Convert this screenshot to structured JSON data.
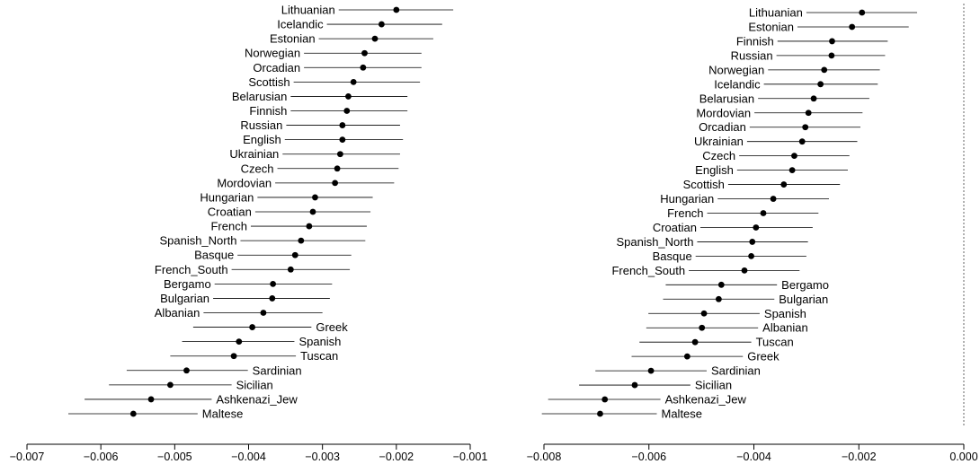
{
  "chart_data": [
    {
      "type": "scatter",
      "style": "forest-plot",
      "title": "",
      "xlabel": "",
      "ylabel": "",
      "xlim": [
        -0.007,
        -0.001
      ],
      "xticks": [
        -0.007,
        -0.006,
        -0.005,
        -0.004,
        -0.003,
        -0.002,
        -0.001
      ],
      "xtick_labels": [
        "−0.007",
        "−0.006",
        "−0.005",
        "−0.004",
        "−0.003",
        "−0.002",
        "−0.001"
      ],
      "rows": [
        {
          "label": "Lithuanian",
          "value": -0.002,
          "lo": -0.00278,
          "hi": -0.00123,
          "label_side": "left"
        },
        {
          "label": "Icelandic",
          "value": -0.0022,
          "lo": -0.00294,
          "hi": -0.00138,
          "label_side": "left"
        },
        {
          "label": "Estonian",
          "value": -0.00229,
          "lo": -0.00305,
          "hi": -0.0015,
          "label_side": "left"
        },
        {
          "label": "Norwegian",
          "value": -0.00243,
          "lo": -0.00325,
          "hi": -0.00166,
          "label_side": "left"
        },
        {
          "label": "Orcadian",
          "value": -0.00245,
          "lo": -0.00325,
          "hi": -0.00166,
          "label_side": "left"
        },
        {
          "label": "Scottish",
          "value": -0.00258,
          "lo": -0.00339,
          "hi": -0.00168,
          "label_side": "left"
        },
        {
          "label": "Belarusian",
          "value": -0.00265,
          "lo": -0.00343,
          "hi": -0.00185,
          "label_side": "left"
        },
        {
          "label": "Finnish",
          "value": -0.00267,
          "lo": -0.00343,
          "hi": -0.00185,
          "label_side": "left"
        },
        {
          "label": "Russian",
          "value": -0.00273,
          "lo": -0.00349,
          "hi": -0.00195,
          "label_side": "left"
        },
        {
          "label": "English",
          "value": -0.00273,
          "lo": -0.00351,
          "hi": -0.00191,
          "label_side": "left"
        },
        {
          "label": "Ukrainian",
          "value": -0.00276,
          "lo": -0.00354,
          "hi": -0.00195,
          "label_side": "left"
        },
        {
          "label": "Czech",
          "value": -0.0028,
          "lo": -0.00361,
          "hi": -0.00197,
          "label_side": "left"
        },
        {
          "label": "Mordovian",
          "value": -0.00283,
          "lo": -0.00364,
          "hi": -0.00203,
          "label_side": "left"
        },
        {
          "label": "Hungarian",
          "value": -0.0031,
          "lo": -0.00388,
          "hi": -0.00232,
          "label_side": "left"
        },
        {
          "label": "Croatian",
          "value": -0.00313,
          "lo": -0.00391,
          "hi": -0.00235,
          "label_side": "left"
        },
        {
          "label": "French",
          "value": -0.00318,
          "lo": -0.00397,
          "hi": -0.0024,
          "label_side": "left"
        },
        {
          "label": "Spanish_North",
          "value": -0.00329,
          "lo": -0.00411,
          "hi": -0.00242,
          "label_side": "left"
        },
        {
          "label": "Basque",
          "value": -0.00337,
          "lo": -0.00415,
          "hi": -0.00261,
          "label_side": "left"
        },
        {
          "label": "French_South",
          "value": -0.00343,
          "lo": -0.00423,
          "hi": -0.00263,
          "label_side": "left"
        },
        {
          "label": "Bergamo",
          "value": -0.00367,
          "lo": -0.00446,
          "hi": -0.00287,
          "label_side": "left"
        },
        {
          "label": "Bulgarian",
          "value": -0.00368,
          "lo": -0.00448,
          "hi": -0.0029,
          "label_side": "left"
        },
        {
          "label": "Albanian",
          "value": -0.0038,
          "lo": -0.00461,
          "hi": -0.003,
          "label_side": "left"
        },
        {
          "label": "Greek",
          "value": -0.00395,
          "lo": -0.00475,
          "hi": -0.00315,
          "label_side": "right"
        },
        {
          "label": "Spanish",
          "value": -0.00413,
          "lo": -0.0049,
          "hi": -0.00338,
          "label_side": "right"
        },
        {
          "label": "Tuscan",
          "value": -0.0042,
          "lo": -0.00506,
          "hi": -0.00336,
          "label_side": "right"
        },
        {
          "label": "Sardinian",
          "value": -0.00484,
          "lo": -0.00565,
          "hi": -0.00401,
          "label_side": "right"
        },
        {
          "label": "Sicilian",
          "value": -0.00506,
          "lo": -0.00589,
          "hi": -0.00423,
          "label_side": "right"
        },
        {
          "label": "Ashkenazi_Jew",
          "value": -0.00532,
          "lo": -0.00622,
          "hi": -0.0045,
          "label_side": "right"
        },
        {
          "label": "Maltese",
          "value": -0.00556,
          "lo": -0.00644,
          "hi": -0.00469,
          "label_side": "right"
        }
      ]
    },
    {
      "type": "scatter",
      "style": "forest-plot",
      "title": "",
      "xlabel": "",
      "ylabel": "",
      "xlim": [
        -0.008,
        0.0
      ],
      "xticks": [
        -0.008,
        -0.006,
        -0.004,
        -0.002,
        0.0
      ],
      "xtick_labels": [
        "−0.008",
        "−0.006",
        "−0.004",
        "−0.002",
        "0.000"
      ],
      "reference_line": 0.0,
      "rows": [
        {
          "label": "Lithuanian",
          "value": -0.00194,
          "lo": -0.003,
          "hi": -0.00089,
          "label_side": "left"
        },
        {
          "label": "Estonian",
          "value": -0.00213,
          "lo": -0.00317,
          "hi": -0.00105,
          "label_side": "left"
        },
        {
          "label": "Finnish",
          "value": -0.00251,
          "lo": -0.00355,
          "hi": -0.00145,
          "label_side": "left"
        },
        {
          "label": "Russian",
          "value": -0.00252,
          "lo": -0.00357,
          "hi": -0.0015,
          "label_side": "left"
        },
        {
          "label": "Norwegian",
          "value": -0.00266,
          "lo": -0.00373,
          "hi": -0.0016,
          "label_side": "left"
        },
        {
          "label": "Icelandic",
          "value": -0.00273,
          "lo": -0.00381,
          "hi": -0.00164,
          "label_side": "left"
        },
        {
          "label": "Belarusian",
          "value": -0.00286,
          "lo": -0.00392,
          "hi": -0.0018,
          "label_side": "left"
        },
        {
          "label": "Mordovian",
          "value": -0.00296,
          "lo": -0.00399,
          "hi": -0.00193,
          "label_side": "left"
        },
        {
          "label": "Orcadian",
          "value": -0.00302,
          "lo": -0.00408,
          "hi": -0.00197,
          "label_side": "left"
        },
        {
          "label": "Ukrainian",
          "value": -0.00308,
          "lo": -0.00413,
          "hi": -0.00203,
          "label_side": "left"
        },
        {
          "label": "Czech",
          "value": -0.00323,
          "lo": -0.00428,
          "hi": -0.00218,
          "label_side": "left"
        },
        {
          "label": "English",
          "value": -0.00327,
          "lo": -0.00432,
          "hi": -0.00221,
          "label_side": "left"
        },
        {
          "label": "Scottish",
          "value": -0.00343,
          "lo": -0.00449,
          "hi": -0.00236,
          "label_side": "left"
        },
        {
          "label": "Hungarian",
          "value": -0.00363,
          "lo": -0.00469,
          "hi": -0.00257,
          "label_side": "left"
        },
        {
          "label": "French",
          "value": -0.00382,
          "lo": -0.00489,
          "hi": -0.00277,
          "label_side": "left"
        },
        {
          "label": "Croatian",
          "value": -0.00396,
          "lo": -0.00502,
          "hi": -0.00288,
          "label_side": "left"
        },
        {
          "label": "Spanish_North",
          "value": -0.00403,
          "lo": -0.00508,
          "hi": -0.00297,
          "label_side": "left"
        },
        {
          "label": "Basque",
          "value": -0.00405,
          "lo": -0.00511,
          "hi": -0.003,
          "label_side": "left"
        },
        {
          "label": "French_South",
          "value": -0.00418,
          "lo": -0.00524,
          "hi": -0.00313,
          "label_side": "left"
        },
        {
          "label": "Bergamo",
          "value": -0.00462,
          "lo": -0.00568,
          "hi": -0.00356,
          "label_side": "right"
        },
        {
          "label": "Bulgarian",
          "value": -0.00467,
          "lo": -0.00573,
          "hi": -0.00361,
          "label_side": "right"
        },
        {
          "label": "Spanish",
          "value": -0.00495,
          "lo": -0.00601,
          "hi": -0.00389,
          "label_side": "right"
        },
        {
          "label": "Albanian",
          "value": -0.00499,
          "lo": -0.00605,
          "hi": -0.00392,
          "label_side": "right"
        },
        {
          "label": "Tuscan",
          "value": -0.00512,
          "lo": -0.00618,
          "hi": -0.00405,
          "label_side": "right"
        },
        {
          "label": "Greek",
          "value": -0.00527,
          "lo": -0.00633,
          "hi": -0.00421,
          "label_side": "right"
        },
        {
          "label": "Sardinian",
          "value": -0.00596,
          "lo": -0.00702,
          "hi": -0.0049,
          "label_side": "right"
        },
        {
          "label": "Sicilian",
          "value": -0.00627,
          "lo": -0.00733,
          "hi": -0.00521,
          "label_side": "right"
        },
        {
          "label": "Ashkenazi_Jew",
          "value": -0.00684,
          "lo": -0.00792,
          "hi": -0.00578,
          "label_side": "right"
        },
        {
          "label": "Maltese",
          "value": -0.00693,
          "lo": -0.00804,
          "hi": -0.00585,
          "label_side": "right"
        }
      ]
    }
  ]
}
